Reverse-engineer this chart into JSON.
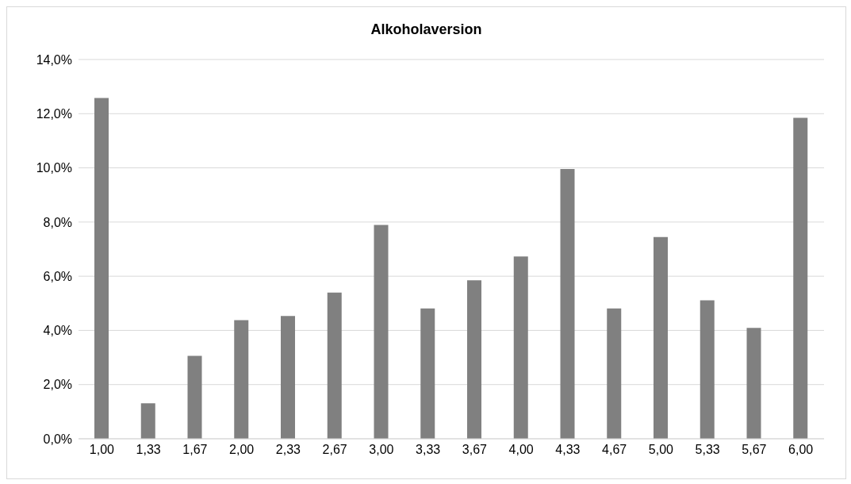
{
  "chart_data": {
    "type": "bar",
    "title": "Alkoholaversion",
    "categories": [
      "1,00",
      "1,33",
      "1,67",
      "2,00",
      "2,33",
      "2,67",
      "3,00",
      "3,33",
      "3,67",
      "4,00",
      "4,33",
      "4,67",
      "5,00",
      "5,33",
      "5,67",
      "6,00"
    ],
    "values": [
      12.58,
      1.31,
      3.06,
      4.38,
      4.53,
      5.4,
      7.89,
      4.81,
      5.85,
      6.73,
      9.96,
      4.81,
      7.45,
      5.11,
      4.09,
      11.85
    ],
    "color": "#808080",
    "ylim": [
      0,
      14
    ],
    "yticks": [
      {
        "value": 0,
        "label": "0,0%"
      },
      {
        "value": 2,
        "label": "2,0%"
      },
      {
        "value": 4,
        "label": "4,0%"
      },
      {
        "value": 6,
        "label": "6,0%"
      },
      {
        "value": 8,
        "label": "8,0%"
      },
      {
        "value": 10,
        "label": "10,0%"
      },
      {
        "value": 12,
        "label": "12,0%"
      },
      {
        "value": 14,
        "label": "14,0%"
      }
    ],
    "grid": "y"
  }
}
